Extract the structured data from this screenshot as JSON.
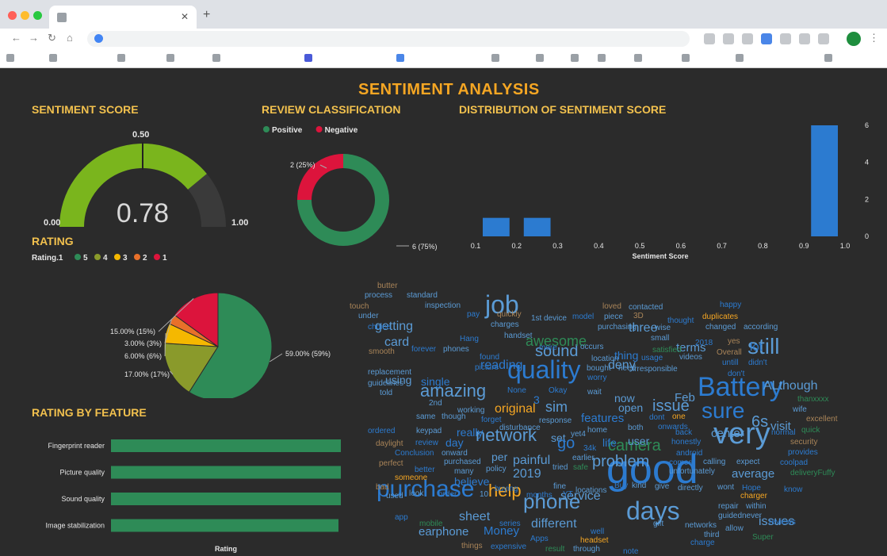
{
  "dashboard": {
    "title": "SENTIMENT ANALYSIS",
    "sections": {
      "sentiment_score": "SENTIMENT SCORE",
      "review_classification": "REVIEW CLASSIFICATION",
      "distribution": "DISTRIBUTION OF SENTIMENT SCORE",
      "rating": "RATING",
      "rating_by_feature": "RATING BY FEATURE"
    }
  },
  "colors": {
    "background": "#2b2b2b",
    "title": "#f5a623",
    "section": "#f2c14e",
    "gauge_fill": "#7ab51d",
    "gauge_empty": "#3a3a3a",
    "positive": "#2e8b57",
    "negative": "#dc143c",
    "bar": "#2c7bd0",
    "feature_bar": "#2e8b57"
  },
  "chart_data": [
    {
      "type": "gauge",
      "name": "sentiment_score",
      "value": 0.78,
      "value_label": "0.78",
      "min": 0,
      "min_label": "0.00",
      "max": 1,
      "max_label": "1.00",
      "target": 0.5,
      "target_label": "0.50"
    },
    {
      "type": "pie",
      "name": "review_classification",
      "donut": true,
      "legend_position": "top-left",
      "slices": [
        {
          "label": "Positive",
          "value": 6,
          "data_label": "6 (75%)",
          "color": "#2e8b57"
        },
        {
          "label": "Negative",
          "value": 2,
          "data_label": "2 (25%)",
          "color": "#dc143c"
        }
      ]
    },
    {
      "type": "bar",
      "name": "distribution_of_sentiment_score",
      "xlabel": "Sentiment Score",
      "x_ticks": [
        "0.1",
        "0.2",
        "0.3",
        "0.4",
        "0.5",
        "0.6",
        "0.7",
        "0.8",
        "0.9",
        "1.0"
      ],
      "y_ticks": [
        "0",
        "2",
        "4",
        "6"
      ],
      "xlim": [
        0.1,
        1.0
      ],
      "ylim": [
        0,
        6
      ],
      "bins": [
        {
          "x0": 0.1,
          "x1": 0.2,
          "count": 1
        },
        {
          "x0": 0.2,
          "x1": 0.3,
          "count": 1
        },
        {
          "x0": 0.9,
          "x1": 1.0,
          "count": 6
        }
      ]
    },
    {
      "type": "pie",
      "name": "rating",
      "legend_title": "Rating.1",
      "legend_position": "top-left",
      "slices": [
        {
          "label": "5",
          "value": 59,
          "data_label": "59.00% (59%)",
          "color": "#2e8b57"
        },
        {
          "label": "4",
          "value": 17,
          "data_label": "17.00% (17%)",
          "color": "#8a9a2b"
        },
        {
          "label": "3",
          "value": 6,
          "data_label": "6.00% (6%)",
          "color": "#f5b800"
        },
        {
          "label": "2",
          "value": 3,
          "data_label": "3.00% (3%)",
          "color": "#e8702a"
        },
        {
          "label": "1",
          "value": 15,
          "data_label": "15.00% (15%)",
          "color": "#dc143c"
        }
      ]
    },
    {
      "type": "bar",
      "name": "rating_by_feature",
      "orientation": "horizontal",
      "xlabel": "Rating",
      "xlim": [
        0,
        5
      ],
      "categories": [
        "Fingerprint reader",
        "Picture quality",
        "Sound quality",
        "Image stabilization"
      ],
      "values": [
        4.3,
        4.3,
        4.3,
        4.1
      ],
      "value_labels": [
        "4.3",
        "4.3",
        "4.3",
        "4.1"
      ]
    }
  ],
  "word_cloud": [
    {
      "t": "good",
      "s": 52,
      "c": "#2c7bd0"
    },
    {
      "t": "very",
      "s": 38,
      "c": "#5b9bd5"
    },
    {
      "t": "Battery",
      "s": 34,
      "c": "#2c7bd0"
    },
    {
      "t": "job",
      "s": 32,
      "c": "#5b9bd5"
    },
    {
      "t": "quality",
      "s": 32,
      "c": "#2c7bd0"
    },
    {
      "t": "days",
      "s": 32,
      "c": "#5b9bd5"
    },
    {
      "t": "purchase",
      "s": 30,
      "c": "#2c7bd0"
    },
    {
      "t": "sure",
      "s": 28,
      "c": "#2c7bd0"
    },
    {
      "t": "still",
      "s": 28,
      "c": "#5b9bd5"
    },
    {
      "t": "phone",
      "s": 26,
      "c": "#5b9bd5"
    },
    {
      "t": "amazing",
      "s": 22,
      "c": "#5b9bd5"
    },
    {
      "t": "network",
      "s": 22,
      "c": "#5b9bd5"
    },
    {
      "t": "help",
      "s": 22,
      "c": "#f5a623"
    },
    {
      "t": "problem",
      "s": 20,
      "c": "#5b9bd5"
    },
    {
      "t": "camera",
      "s": 20,
      "c": "#2e8b57"
    },
    {
      "t": "sound",
      "s": 20,
      "c": "#5b9bd5"
    },
    {
      "t": "6s",
      "s": 20,
      "c": "#5b9bd5"
    },
    {
      "t": "issue",
      "s": 20,
      "c": "#5b9bd5"
    },
    {
      "t": "awesome",
      "s": 18,
      "c": "#2e8b57"
    },
    {
      "t": "sim",
      "s": 18,
      "c": "#5b9bd5"
    },
    {
      "t": "ALthough",
      "s": 16,
      "c": "#5b9bd5"
    },
    {
      "t": "issues",
      "s": 16,
      "c": "#5b9bd5"
    },
    {
      "t": "original",
      "s": 16,
      "c": "#f5a623"
    },
    {
      "t": "different",
      "s": 16,
      "c": "#5b9bd5"
    },
    {
      "t": "painful",
      "s": 16,
      "c": "#5b9bd5"
    },
    {
      "t": "sheet",
      "s": 16,
      "c": "#5b9bd5"
    },
    {
      "t": "service",
      "s": 16,
      "c": "#5b9bd5"
    },
    {
      "t": "2019",
      "s": 16,
      "c": "#5b9bd5"
    },
    {
      "t": "three",
      "s": 16,
      "c": "#5b9bd5"
    },
    {
      "t": "deny",
      "s": 16,
      "c": "#5b9bd5"
    },
    {
      "t": "reading",
      "s": 16,
      "c": "#2c7bd0"
    },
    {
      "t": "getting",
      "s": 16,
      "c": "#5b9bd5"
    },
    {
      "t": "card",
      "s": 16,
      "c": "#5b9bd5"
    },
    {
      "t": "earphone",
      "s": 15,
      "c": "#5b9bd5"
    },
    {
      "t": "Money",
      "s": 15,
      "c": "#2c7bd0"
    },
    {
      "t": "average",
      "s": 15,
      "c": "#5b9bd5"
    },
    {
      "t": "terms",
      "s": 15,
      "c": "#5b9bd5"
    },
    {
      "t": "lot",
      "s": 15,
      "c": "#2c7bd0"
    },
    {
      "t": "visit",
      "s": 15,
      "c": "#5b9bd5"
    },
    {
      "t": "Feb",
      "s": 15,
      "c": "#5b9bd5"
    },
    {
      "t": "features",
      "s": 15,
      "c": "#2c7bd0"
    },
    {
      "t": "center",
      "s": 15,
      "c": "#5b9bd5"
    },
    {
      "t": "using",
      "s": 14,
      "c": "#5b9bd5"
    },
    {
      "t": "single",
      "s": 14,
      "c": "#2c7bd0"
    },
    {
      "t": "really",
      "s": 14,
      "c": "#2c7bd0"
    },
    {
      "t": "believe",
      "s": 14,
      "c": "#2c7bd0"
    },
    {
      "t": "thing",
      "s": 14,
      "c": "#2c7bd0"
    },
    {
      "t": "day",
      "s": 14,
      "c": "#2c7bd0"
    },
    {
      "t": "per",
      "s": 14,
      "c": "#5b9bd5"
    },
    {
      "t": "set",
      "s": 14,
      "c": "#5b9bd5"
    },
    {
      "t": "life",
      "s": 14,
      "c": "#2c7bd0"
    },
    {
      "t": "user",
      "s": 14,
      "c": "#5b9bd5"
    },
    {
      "t": "now",
      "s": 14,
      "c": "#5b9bd5"
    },
    {
      "t": "open",
      "s": 14,
      "c": "#5b9bd5"
    },
    {
      "t": "go",
      "s": 20,
      "c": "#2c7bd0"
    },
    {
      "t": "3",
      "s": 14,
      "c": "#2c7bd0"
    },
    {
      "t": "butter",
      "s": 10,
      "c": "#a98458"
    },
    {
      "t": "process",
      "s": 10,
      "c": "#5b9bd5"
    },
    {
      "t": "standard",
      "s": 10,
      "c": "#5b9bd5"
    },
    {
      "t": "inspection",
      "s": 10,
      "c": "#5b9bd5"
    },
    {
      "t": "touch",
      "s": 10,
      "c": "#a98458"
    },
    {
      "t": "under",
      "s": 10,
      "c": "#5b9bd5"
    },
    {
      "t": "choice",
      "s": 10,
      "c": "#2c7bd0"
    },
    {
      "t": "pay",
      "s": 10,
      "c": "#2c7bd0"
    },
    {
      "t": "quickly",
      "s": 10,
      "c": "#a98458"
    },
    {
      "t": "charges",
      "s": 10,
      "c": "#5b9bd5"
    },
    {
      "t": "1st",
      "s": 10,
      "c": "#5b9bd5"
    },
    {
      "t": "device",
      "s": 10,
      "c": "#5b9bd5"
    },
    {
      "t": "model",
      "s": 10,
      "c": "#2c7bd0"
    },
    {
      "t": "piece",
      "s": 10,
      "c": "#5b9bd5"
    },
    {
      "t": "3D",
      "s": 10,
      "c": "#a98458"
    },
    {
      "t": "loved",
      "s": 10,
      "c": "#a98458"
    },
    {
      "t": "purchasing",
      "s": 10,
      "c": "#5b9bd5"
    },
    {
      "t": "wise",
      "s": 10,
      "c": "#5b9bd5"
    },
    {
      "t": "handset",
      "s": 10,
      "c": "#5b9bd5"
    },
    {
      "t": "Hang",
      "s": 10,
      "c": "#2c7bd0"
    },
    {
      "t": "smooth",
      "s": 10,
      "c": "#a98458"
    },
    {
      "t": "forever",
      "s": 10,
      "c": "#2c7bd0"
    },
    {
      "t": "phones",
      "s": 10,
      "c": "#5b9bd5"
    },
    {
      "t": "found",
      "s": 10,
      "c": "#2c7bd0"
    },
    {
      "t": "picture",
      "s": 10,
      "c": "#2c7bd0"
    },
    {
      "t": "more",
      "s": 10,
      "c": "#2c7bd0"
    },
    {
      "t": "occurs",
      "s": 10,
      "c": "#5b9bd5"
    },
    {
      "t": "location",
      "s": 10,
      "c": "#5b9bd5"
    },
    {
      "t": "bought",
      "s": 10,
      "c": "#5b9bd5"
    },
    {
      "t": "need",
      "s": 10,
      "c": "#5b9bd5"
    },
    {
      "t": "worry",
      "s": 10,
      "c": "#2c7bd0"
    },
    {
      "t": "satisfied",
      "s": 10,
      "c": "#2e8b57"
    },
    {
      "t": "usage",
      "s": 10,
      "c": "#2c7bd0"
    },
    {
      "t": "irresponsible",
      "s": 10,
      "c": "#5b9bd5"
    },
    {
      "t": "small",
      "s": 10,
      "c": "#5b9bd5"
    },
    {
      "t": "contacted",
      "s": 10,
      "c": "#5b9bd5"
    },
    {
      "t": "happy",
      "s": 10,
      "c": "#2c7bd0"
    },
    {
      "t": "duplicates",
      "s": 10,
      "c": "#f5a623"
    },
    {
      "t": "thought",
      "s": 10,
      "c": "#2c7bd0"
    },
    {
      "t": "changed",
      "s": 10,
      "c": "#5b9bd5"
    },
    {
      "t": "according",
      "s": 10,
      "c": "#5b9bd5"
    },
    {
      "t": "yes",
      "s": 10,
      "c": "#a98458"
    },
    {
      "t": "2018",
      "s": 10,
      "c": "#2c7bd0"
    },
    {
      "t": "Overall",
      "s": 10,
      "c": "#a98458"
    },
    {
      "t": "videos",
      "s": 10,
      "c": "#5b9bd5"
    },
    {
      "t": "untill",
      "s": 10,
      "c": "#2c7bd0"
    },
    {
      "t": "didn't",
      "s": 10,
      "c": "#2c7bd0"
    },
    {
      "t": "don't",
      "s": 10,
      "c": "#2c7bd0"
    },
    {
      "t": "replacement",
      "s": 10,
      "c": "#5b9bd5"
    },
    {
      "t": "guidelines",
      "s": 10,
      "c": "#5b9bd5"
    },
    {
      "t": "told",
      "s": 10,
      "c": "#5b9bd5"
    },
    {
      "t": "2nd",
      "s": 10,
      "c": "#5b9bd5"
    },
    {
      "t": "None",
      "s": 10,
      "c": "#2c7bd0"
    },
    {
      "t": "Okay",
      "s": 10,
      "c": "#2c7bd0"
    },
    {
      "t": "wait",
      "s": 10,
      "c": "#5b9bd5"
    },
    {
      "t": "thanxxxx",
      "s": 10,
      "c": "#2e8b57"
    },
    {
      "t": "wife",
      "s": 10,
      "c": "#5b9bd5"
    },
    {
      "t": "excellent",
      "s": 10,
      "c": "#a98458"
    },
    {
      "t": "quick",
      "s": 10,
      "c": "#2e8b57"
    },
    {
      "t": "same",
      "s": 10,
      "c": "#5b9bd5"
    },
    {
      "t": "though",
      "s": 10,
      "c": "#5b9bd5"
    },
    {
      "t": "working",
      "s": 10,
      "c": "#5b9bd5"
    },
    {
      "t": "forget",
      "s": 10,
      "c": "#2c7bd0"
    },
    {
      "t": "response",
      "s": 10,
      "c": "#5b9bd5"
    },
    {
      "t": "dont",
      "s": 10,
      "c": "#2c7bd0"
    },
    {
      "t": "one",
      "s": 10,
      "c": "#f5a623"
    },
    {
      "t": "both",
      "s": 10,
      "c": "#5b9bd5"
    },
    {
      "t": "onwards",
      "s": 10,
      "c": "#2c7bd0"
    },
    {
      "t": "ordered",
      "s": 10,
      "c": "#2c7bd0"
    },
    {
      "t": "daylight",
      "s": 10,
      "c": "#a98458"
    },
    {
      "t": "keypad",
      "s": 10,
      "c": "#5b9bd5"
    },
    {
      "t": "disturbance",
      "s": 10,
      "c": "#5b9bd5"
    },
    {
      "t": "yet4",
      "s": 10,
      "c": "#5b9bd5"
    },
    {
      "t": "home",
      "s": 10,
      "c": "#5b9bd5"
    },
    {
      "t": "back",
      "s": 10,
      "c": "#2c7bd0"
    },
    {
      "t": "honestly",
      "s": 10,
      "c": "#2c7bd0"
    },
    {
      "t": "normal",
      "s": 10,
      "c": "#2c7bd0"
    },
    {
      "t": "security",
      "s": 10,
      "c": "#a98458"
    },
    {
      "t": "review",
      "s": 10,
      "c": "#2c7bd0"
    },
    {
      "t": "Conclusion",
      "s": 10,
      "c": "#2c7bd0"
    },
    {
      "t": "onward",
      "s": 10,
      "c": "#5b9bd5"
    },
    {
      "t": "34k",
      "s": 10,
      "c": "#2c7bd0"
    },
    {
      "t": "earlier",
      "s": 10,
      "c": "#5b9bd5"
    },
    {
      "t": "android",
      "s": 10,
      "c": "#2c7bd0"
    },
    {
      "t": "calling",
      "s": 10,
      "c": "#5b9bd5"
    },
    {
      "t": "expect",
      "s": 10,
      "c": "#5b9bd5"
    },
    {
      "t": "provides",
      "s": 10,
      "c": "#2c7bd0"
    },
    {
      "t": "coolpad",
      "s": 10,
      "c": "#2c7bd0"
    },
    {
      "t": "perfect",
      "s": 10,
      "c": "#a98458"
    },
    {
      "t": "purchased",
      "s": 10,
      "c": "#5b9bd5"
    },
    {
      "t": "policy",
      "s": 10,
      "c": "#5b9bd5"
    },
    {
      "t": "tried",
      "s": 10,
      "c": "#5b9bd5"
    },
    {
      "t": "safe",
      "s": 10,
      "c": "#2e8b57"
    },
    {
      "t": "comes",
      "s": 10,
      "c": "#2c7bd0"
    },
    {
      "t": "unfortunately",
      "s": 10,
      "c": "#5b9bd5"
    },
    {
      "t": "deliveryFuffy",
      "s": 10,
      "c": "#2e8b57"
    },
    {
      "t": "better",
      "s": 10,
      "c": "#2c7bd0"
    },
    {
      "t": "many",
      "s": 10,
      "c": "#5b9bd5"
    },
    {
      "t": "someone",
      "s": 10,
      "c": "#f5a623"
    },
    {
      "t": "bad",
      "s": 10,
      "c": "#a98458"
    },
    {
      "t": "used",
      "s": 10,
      "c": "#5b9bd5"
    },
    {
      "t": "look",
      "s": 10,
      "c": "#5b9bd5"
    },
    {
      "t": "order",
      "s": 10,
      "c": "#2c7bd0"
    },
    {
      "t": "10",
      "s": 10,
      "c": "#5b9bd5"
    },
    {
      "t": "buying",
      "s": 10,
      "c": "#2c7bd0"
    },
    {
      "t": "months",
      "s": 10,
      "c": "#2c7bd0"
    },
    {
      "t": "YT",
      "s": 10,
      "c": "#2c7bd0"
    },
    {
      "t": "fine",
      "s": 10,
      "c": "#5b9bd5"
    },
    {
      "t": "locations",
      "s": 10,
      "c": "#5b9bd5"
    },
    {
      "t": "Buy",
      "s": 10,
      "c": "#2c7bd0"
    },
    {
      "t": "kind",
      "s": 10,
      "c": "#5b9bd5"
    },
    {
      "t": "give",
      "s": 10,
      "c": "#5b9bd5"
    },
    {
      "t": "directly",
      "s": 10,
      "c": "#5b9bd5"
    },
    {
      "t": "wont",
      "s": 10,
      "c": "#5b9bd5"
    },
    {
      "t": "Hope",
      "s": 10,
      "c": "#2c7bd0"
    },
    {
      "t": "know",
      "s": 10,
      "c": "#2c7bd0"
    },
    {
      "t": "charger",
      "s": 10,
      "c": "#f5a623"
    },
    {
      "t": "within",
      "s": 10,
      "c": "#5b9bd5"
    },
    {
      "t": "never",
      "s": 10,
      "c": "#5b9bd5"
    },
    {
      "t": "repair",
      "s": 10,
      "c": "#5b9bd5"
    },
    {
      "t": "guided",
      "s": 10,
      "c": "#5b9bd5"
    },
    {
      "t": "reviews",
      "s": 10,
      "c": "#2c7bd0"
    },
    {
      "t": "app",
      "s": 10,
      "c": "#2c7bd0"
    },
    {
      "t": "mobile",
      "s": 10,
      "c": "#2e8b57"
    },
    {
      "t": "series",
      "s": 10,
      "c": "#2c7bd0"
    },
    {
      "t": "Apps",
      "s": 10,
      "c": "#2c7bd0"
    },
    {
      "t": "well",
      "s": 10,
      "c": "#2c7bd0"
    },
    {
      "t": "gift",
      "s": 10,
      "c": "#5b9bd5"
    },
    {
      "t": "networks",
      "s": 10,
      "c": "#5b9bd5"
    },
    {
      "t": "third",
      "s": 10,
      "c": "#5b9bd5"
    },
    {
      "t": "allow",
      "s": 10,
      "c": "#5b9bd5"
    },
    {
      "t": "Super",
      "s": 10,
      "c": "#2e8b57"
    },
    {
      "t": "headset",
      "s": 10,
      "c": "#f5a623"
    },
    {
      "t": "things",
      "s": 10,
      "c": "#a98458"
    },
    {
      "t": "expensive",
      "s": 10,
      "c": "#2c7bd0"
    },
    {
      "t": "result",
      "s": 10,
      "c": "#2e8b57"
    },
    {
      "t": "through",
      "s": 10,
      "c": "#5b9bd5"
    },
    {
      "t": "note",
      "s": 10,
      "c": "#2c7bd0"
    },
    {
      "t": "charge",
      "s": 10,
      "c": "#2c7bd0"
    }
  ]
}
